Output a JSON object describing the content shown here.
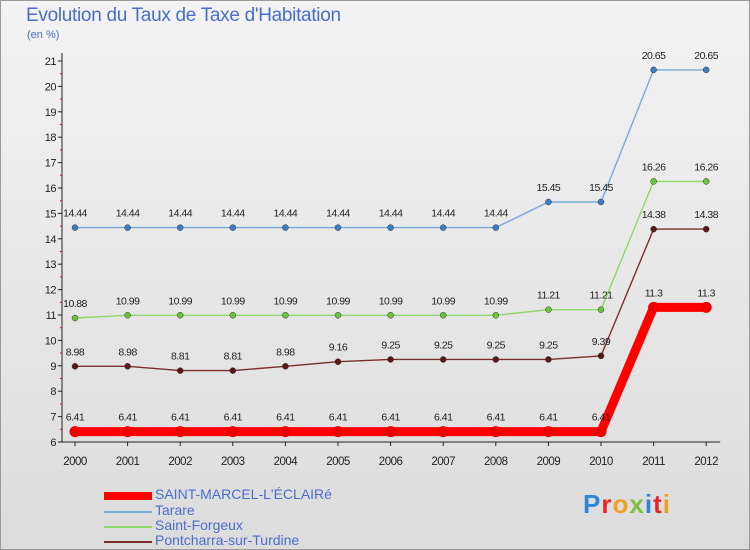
{
  "title": "Evolution du Taux de Taxe d'Habitation",
  "subtitle": "(en %)",
  "logo": {
    "text": "Proxiti",
    "letter_colors": [
      "#2e86d6",
      "#e8242a",
      "#f0a020",
      "#7ac143",
      "#2e86d6",
      "#e8242a",
      "#f0a020"
    ]
  },
  "chart_data": {
    "type": "line",
    "title": "Evolution du Taux de Taxe d'Habitation",
    "ylabel": "(en %)",
    "xlabel": "",
    "x": [
      "2000",
      "2001",
      "2002",
      "2003",
      "2004",
      "2005",
      "2006",
      "2007",
      "2008",
      "2009",
      "2010",
      "2011",
      "2012"
    ],
    "ylim": [
      6,
      21
    ],
    "yticks": [
      6,
      7,
      8,
      9,
      10,
      11,
      12,
      13,
      14,
      15,
      16,
      17,
      18,
      19,
      20,
      21
    ],
    "grid": false,
    "legend_position": "bottom-left",
    "series": [
      {
        "name": "SAINT-MARCEL-L'ÉCLAIRé",
        "color": "#ff0000",
        "marker_color": "#ee0000",
        "values": [
          6.41,
          6.41,
          6.41,
          6.41,
          6.41,
          6.41,
          6.41,
          6.41,
          6.41,
          6.41,
          6.41,
          11.3,
          11.3
        ],
        "labels": [
          "6.41",
          "6.41",
          "6.41",
          "6.41",
          "6.41",
          "6.41",
          "6.41",
          "6.41",
          "6.41",
          "6.41",
          "6.41",
          "11.3",
          "11.3"
        ]
      },
      {
        "name": "Tarare",
        "color": "#7aa8d8",
        "marker_color": "#3a7fc4",
        "values": [
          14.44,
          14.44,
          14.44,
          14.44,
          14.44,
          14.44,
          14.44,
          14.44,
          14.44,
          15.45,
          15.45,
          20.65,
          20.65
        ],
        "labels": [
          "14.44",
          "14.44",
          "14.44",
          "14.44",
          "14.44",
          "14.44",
          "14.44",
          "14.44",
          "14.44",
          "15.45",
          "15.45",
          "20.65",
          "20.65"
        ]
      },
      {
        "name": "Saint-Forgeux",
        "color": "#8ed86a",
        "marker_color": "#6cc43c",
        "values": [
          10.88,
          10.99,
          10.99,
          10.99,
          10.99,
          10.99,
          10.99,
          10.99,
          10.99,
          11.21,
          11.21,
          16.26,
          16.26
        ],
        "labels": [
          "10.88",
          "10.99",
          "10.99",
          "10.99",
          "10.99",
          "10.99",
          "10.99",
          "10.99",
          "10.99",
          "11.21",
          "11.21",
          "16.26",
          "16.26"
        ]
      },
      {
        "name": "Pontcharra-sur-Turdine",
        "color": "#7a2e2e",
        "marker_color": "#5a1818",
        "values": [
          8.98,
          8.98,
          8.81,
          8.81,
          8.98,
          9.16,
          9.25,
          9.25,
          9.25,
          9.25,
          9.39,
          14.38,
          14.38
        ],
        "labels": [
          "8.98",
          "8.98",
          "8.81",
          "8.81",
          "8.98",
          "9.16",
          "9.25",
          "9.25",
          "9.25",
          "9.25",
          "9.39",
          "14.38",
          "14.38"
        ]
      }
    ]
  }
}
